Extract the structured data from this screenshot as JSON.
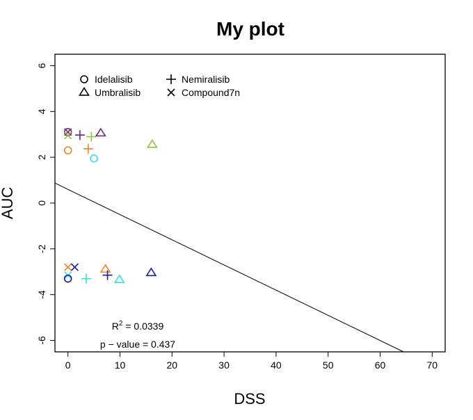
{
  "chart_data": {
    "type": "scatter",
    "title": "My plot",
    "xlabel": "DSS",
    "ylabel": "AUC",
    "xlim": [
      -2.5,
      72.5
    ],
    "ylim": [
      -6.5,
      6.5
    ],
    "x_ticks": [
      0,
      10,
      20,
      30,
      40,
      50,
      60,
      70
    ],
    "y_ticks": [
      -6,
      -4,
      -2,
      0,
      2,
      4,
      6
    ],
    "legend": {
      "position": "top-left",
      "entries": [
        {
          "label": "Idelalisib",
          "marker": "circle"
        },
        {
          "label": "Nemiralisib",
          "marker": "plus"
        },
        {
          "label": "Umbralisib",
          "marker": "triangle"
        },
        {
          "label": "Compound7n",
          "marker": "cross"
        }
      ]
    },
    "points": [
      {
        "x": 0,
        "y": 3.1,
        "marker": "circle",
        "color": "#7B1F7F"
      },
      {
        "x": 0,
        "y": 3.1,
        "marker": "cross",
        "color": "#7B1F7F"
      },
      {
        "x": 0,
        "y": 2.95,
        "marker": "cross",
        "color": "#8CC63F"
      },
      {
        "x": 2.3,
        "y": 2.97,
        "marker": "plus",
        "color": "#7B1F7F"
      },
      {
        "x": 4.5,
        "y": 2.9,
        "marker": "plus",
        "color": "#8CC63F"
      },
      {
        "x": 6.3,
        "y": 3.05,
        "marker": "triangle",
        "color": "#7B1F7F"
      },
      {
        "x": 16.2,
        "y": 2.55,
        "marker": "triangle",
        "color": "#8CC63F"
      },
      {
        "x": 0,
        "y": 2.3,
        "marker": "circle",
        "color": "#F5821F"
      },
      {
        "x": 3.9,
        "y": 2.37,
        "marker": "plus",
        "color": "#F5821F"
      },
      {
        "x": 5,
        "y": 1.95,
        "marker": "circle",
        "color": "#33E5E5"
      },
      {
        "x": 0,
        "y": -2.8,
        "marker": "cross",
        "color": "#F5821F"
      },
      {
        "x": 1.3,
        "y": -2.8,
        "marker": "cross",
        "color": "#1A1AB3"
      },
      {
        "x": 0,
        "y": -3.15,
        "marker": "cross",
        "color": "#33E5E5"
      },
      {
        "x": 0,
        "y": -3.3,
        "marker": "circle",
        "color": "#1A1AB3"
      },
      {
        "x": 3.5,
        "y": -3.3,
        "marker": "plus",
        "color": "#33E5E5"
      },
      {
        "x": 7.2,
        "y": -2.9,
        "marker": "triangle",
        "color": "#F5821F"
      },
      {
        "x": 7.6,
        "y": -3.15,
        "marker": "plus",
        "color": "#1A1AB3"
      },
      {
        "x": 9.9,
        "y": -3.35,
        "marker": "triangle",
        "color": "#33E5E5"
      },
      {
        "x": 16,
        "y": -3.05,
        "marker": "triangle",
        "color": "#1A1AB3"
      }
    ],
    "regression_line": {
      "x1": -2.5,
      "y1": 0.87,
      "x2": 64.5,
      "y2": -6.5
    },
    "annotations": {
      "r2_label": "R",
      "r2_sup": "2",
      "r2_value": " = 0.0339",
      "pvalue": "p − value = 0.437"
    }
  }
}
